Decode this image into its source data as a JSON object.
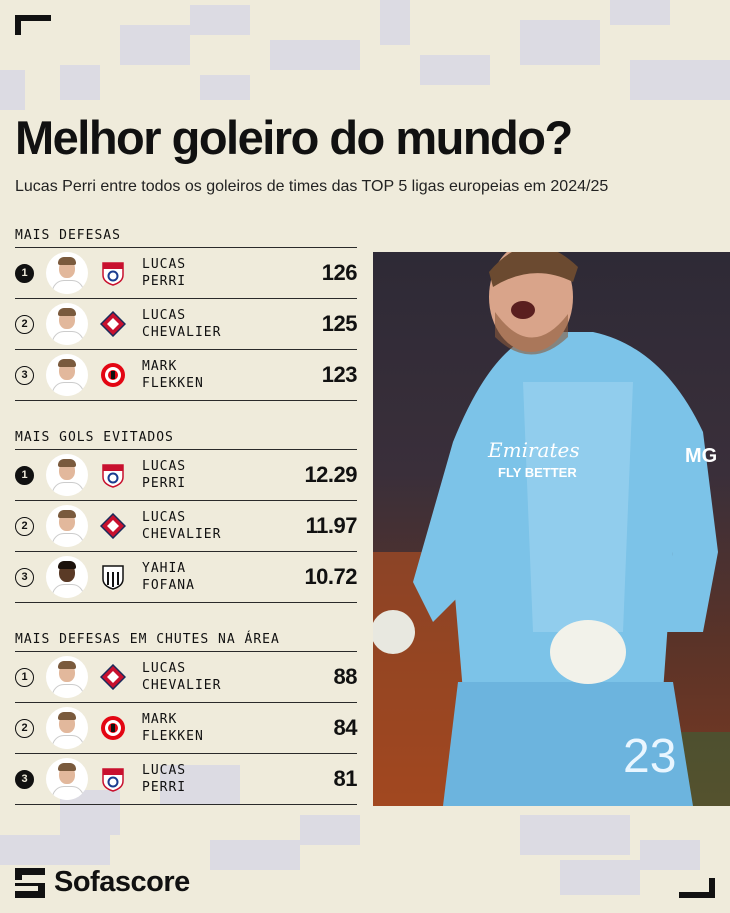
{
  "header": {
    "title": "Melhor goleiro do mundo?",
    "subtitle": "Lucas Perri entre todos os goleiros de times das TOP 5 ligas europeias em 2024/25"
  },
  "sections": [
    {
      "title": "MAIS DEFESAS",
      "rows": [
        {
          "rank": "1",
          "rank_style": "filled",
          "first": "LUCAS",
          "last": "PERRI",
          "club": "lyon-crest",
          "value": "126"
        },
        {
          "rank": "2",
          "rank_style": "outline",
          "first": "LUCAS",
          "last": "CHEVALIER",
          "club": "lille-crest",
          "value": "125"
        },
        {
          "rank": "3",
          "rank_style": "outline",
          "first": "MARK",
          "last": "FLEKKEN",
          "club": "brentford-crest",
          "value": "123"
        }
      ]
    },
    {
      "title": "MAIS GOLS EVITADOS",
      "rows": [
        {
          "rank": "1",
          "rank_style": "filled",
          "first": "LUCAS",
          "last": "PERRI",
          "club": "lyon-crest",
          "value": "12.29"
        },
        {
          "rank": "2",
          "rank_style": "outline",
          "first": "LUCAS",
          "last": "CHEVALIER",
          "club": "lille-crest",
          "value": "11.97"
        },
        {
          "rank": "3",
          "rank_style": "outline",
          "first": "YAHIA",
          "last": "FOFANA",
          "club": "angers-crest",
          "value": "10.72"
        }
      ]
    },
    {
      "title": "MAIS DEFESAS EM CHUTES NA ÁREA",
      "rows": [
        {
          "rank": "1",
          "rank_style": "outline",
          "first": "LUCAS",
          "last": "CHEVALIER",
          "club": "lille-crest",
          "value": "88"
        },
        {
          "rank": "2",
          "rank_style": "outline",
          "first": "MARK",
          "last": "FLEKKEN",
          "club": "brentford-crest",
          "value": "84"
        },
        {
          "rank": "3",
          "rank_style": "filled",
          "first": "LUCAS",
          "last": "PERRI",
          "club": "lyon-crest",
          "value": "81"
        }
      ]
    }
  ],
  "photo": {
    "shirt_sponsor_line1": "Emirates",
    "shirt_sponsor_line2": "FLY BETTER",
    "shirt_number": "23",
    "sleeve_badge": "MG"
  },
  "brand": {
    "name": "Sofascore",
    "icon": "sofascore-logo-icon"
  },
  "colors": {
    "background": "#efebdb",
    "text": "#111111",
    "pixel_tiles": "#dcdbe3",
    "kit_blue": "#7cc3e8"
  }
}
